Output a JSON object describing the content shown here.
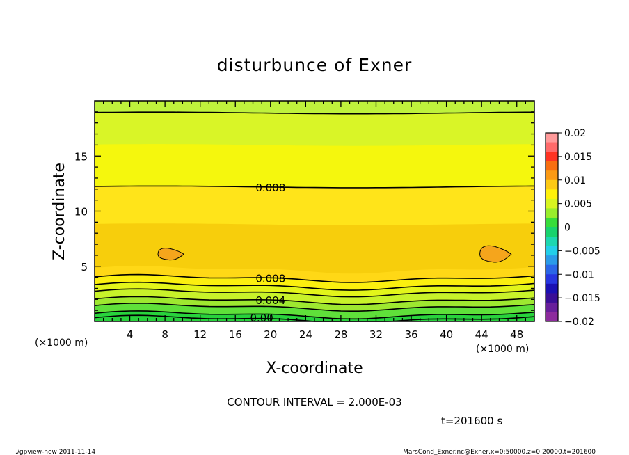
{
  "chart_data": {
    "type": "contour",
    "title": "disturbunce of Exner",
    "xlabel": "X-coordinate",
    "ylabel": "Z-coordinate",
    "x_unit_left": "(×1000 m)",
    "x_unit_right": "(×1000 m)",
    "xlim": [
      0,
      50
    ],
    "ylim": [
      0,
      20
    ],
    "x_ticks": [
      4,
      8,
      12,
      16,
      20,
      24,
      28,
      32,
      36,
      40,
      44,
      48
    ],
    "x_tick_labels": [
      "4",
      "8",
      "12",
      "16",
      "20",
      "24",
      "28",
      "32",
      "36",
      "40",
      "44",
      "48"
    ],
    "y_ticks": [
      5,
      10,
      15
    ],
    "y_tick_labels": [
      "5",
      "10",
      "15"
    ],
    "contour_interval_text": "CONTOUR INTERVAL = 2.000E-03",
    "time_text": "t=201600 s",
    "contour_labels": [
      {
        "text": "0.008",
        "x": 20,
        "z": 12.2
      },
      {
        "text": "0.008",
        "x": 20,
        "z": 3.9
      },
      {
        "text": "0.004",
        "x": 20,
        "z": 1.9
      },
      {
        "text": "0.00",
        "x": 19,
        "z": 0.3
      }
    ],
    "bands": [
      {
        "z_top": 19.7,
        "color": "#bff23c"
      },
      {
        "z_top": 18.9,
        "color": "#d9f527"
      },
      {
        "z_top": 16.0,
        "color": "#f5f70d"
      },
      {
        "z_top": 12.2,
        "color": "#ffe41a"
      },
      {
        "z_top": 8.8,
        "color": "#f7ce0c"
      },
      {
        "z_top": 4.7,
        "color": "#ffd816"
      },
      {
        "z_top": 3.9,
        "color": "#fbef0f"
      },
      {
        "z_top": 3.2,
        "color": "#e3f51a"
      },
      {
        "z_top": 2.6,
        "color": "#c8f22a"
      },
      {
        "z_top": 1.9,
        "color": "#9ee830"
      },
      {
        "z_top": 1.3,
        "color": "#5fe03a"
      },
      {
        "z_top": 0.6,
        "color": "#28d33c"
      }
    ],
    "contour_lines_z": [
      18.9,
      12.2,
      3.9,
      3.2,
      2.6,
      1.9,
      1.3,
      0.6,
      0.2
    ],
    "blobs": [
      {
        "x": 8.6,
        "z": 6.1,
        "rx": 1.4,
        "rz": 0.5,
        "color": "#f5a51c"
      },
      {
        "x": 45.5,
        "z": 6.1,
        "rx": 1.7,
        "rz": 0.7,
        "color": "#f5a51c"
      }
    ],
    "colorbar": {
      "tick_labels": [
        "0.02",
        "0.015",
        "0.01",
        "0.005",
        "0",
        "−0.005",
        "−0.01",
        "−0.015",
        "−0.02"
      ],
      "range": [
        -0.02,
        0.02
      ],
      "colors": [
        "#ff9a9a",
        "#ff6a6a",
        "#ff3322",
        "#f86e10",
        "#fb9a14",
        "#fcc914",
        "#fff10a",
        "#d8f520",
        "#99ee2c",
        "#37dd3a",
        "#18d36d",
        "#1cd7b0",
        "#22cfe9",
        "#2a9be8",
        "#2a66e7",
        "#2636e0",
        "#1a10b3",
        "#3a0f97",
        "#681f9b",
        "#8d2c9d"
      ]
    }
  },
  "footer": {
    "left": "./gpview-new   2011-11-14",
    "right": "MarsCond_Exner.nc@Exner,x=0:50000,z=0:20000,t=201600"
  }
}
